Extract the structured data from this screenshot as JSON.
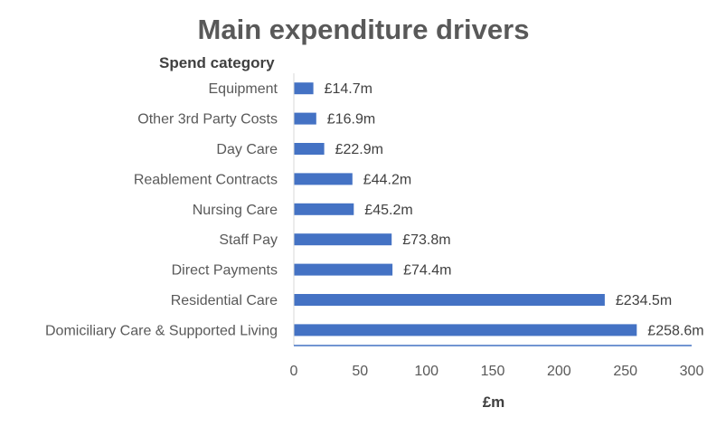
{
  "chart_data": {
    "type": "bar",
    "orientation": "horizontal",
    "title": "Main expenditure drivers",
    "ylabel": "Spend category",
    "xlabel": "£m",
    "categories": [
      "Equipment",
      "Other 3rd Party Costs",
      "Day Care",
      "Reablement Contracts",
      "Nursing Care",
      "Staff Pay",
      "Direct Payments",
      "Residential Care",
      "Domiciliary Care & Supported Living"
    ],
    "values": [
      14.7,
      16.9,
      22.9,
      44.2,
      45.2,
      73.8,
      74.4,
      234.5,
      258.6
    ],
    "data_labels": [
      "£14.7m",
      "£16.9m",
      "£22.9m",
      "£44.2m",
      "£45.2m",
      "£73.8m",
      "£74.4m",
      "£234.5m",
      "£258.6m"
    ],
    "xlim": [
      0,
      300
    ],
    "xticks": [
      "0",
      "50",
      "100",
      "150",
      "200",
      "250",
      "300"
    ],
    "grid": false,
    "legend": "none",
    "bar_color": "#4472C4",
    "axis_color": "#4472C4"
  }
}
